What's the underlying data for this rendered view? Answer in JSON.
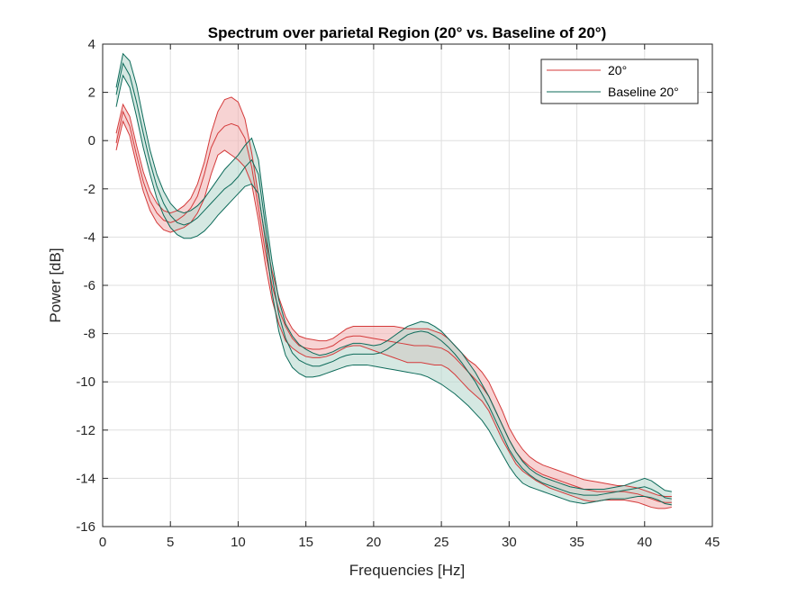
{
  "chart_data": {
    "type": "area",
    "title": "Spectrum over parietal Region (20° vs. Baseline of 20°)",
    "xlabel": "Frequencies [Hz]",
    "ylabel": "Power [dB]",
    "xlim": [
      0,
      45
    ],
    "ylim": [
      -16,
      4
    ],
    "xticks": [
      0,
      5,
      10,
      15,
      20,
      25,
      30,
      35,
      40,
      45
    ],
    "yticks": [
      4,
      2,
      0,
      -2,
      -4,
      -6,
      -8,
      -10,
      -12,
      -14,
      -16
    ],
    "grid": true,
    "legend_position": "top-right",
    "series": [
      {
        "name": "20°",
        "color": "#d43a3a",
        "fill": "#f2b6b6",
        "x": [
          1,
          1.5,
          2,
          2.5,
          3,
          3.5,
          4,
          4.5,
          5,
          5.5,
          6,
          6.5,
          7,
          7.5,
          8,
          8.5,
          9,
          9.5,
          10,
          10.5,
          11,
          11.5,
          12,
          12.5,
          13,
          13.5,
          14,
          14.5,
          15,
          15.5,
          16,
          16.5,
          17,
          17.5,
          18,
          18.5,
          19,
          19.5,
          20,
          20.5,
          21,
          21.5,
          22,
          22.5,
          23,
          23.5,
          24,
          24.5,
          25,
          25.5,
          26,
          26.5,
          27,
          27.5,
          28,
          28.5,
          29,
          29.5,
          30,
          30.5,
          31,
          31.5,
          32,
          32.5,
          33,
          33.5,
          34,
          34.5,
          35,
          35.5,
          36,
          36.5,
          37,
          37.5,
          38,
          38.5,
          39,
          39.5,
          40,
          40.5,
          41,
          41.5,
          42
        ],
        "upper": [
          0.3,
          1.5,
          1.0,
          -0.2,
          -1.3,
          -2.1,
          -2.6,
          -2.9,
          -3.0,
          -2.9,
          -2.7,
          -2.4,
          -1.8,
          -0.9,
          0.3,
          1.2,
          1.7,
          1.8,
          1.6,
          0.9,
          -0.5,
          -2.3,
          -4.0,
          -5.4,
          -6.5,
          -7.3,
          -7.8,
          -8.1,
          -8.2,
          -8.25,
          -8.3,
          -8.3,
          -8.2,
          -8.0,
          -7.8,
          -7.7,
          -7.7,
          -7.7,
          -7.7,
          -7.7,
          -7.7,
          -7.7,
          -7.75,
          -7.8,
          -7.8,
          -7.8,
          -7.8,
          -7.9,
          -8.0,
          -8.2,
          -8.5,
          -8.8,
          -9.1,
          -9.3,
          -9.6,
          -10.0,
          -10.6,
          -11.2,
          -11.9,
          -12.4,
          -12.8,
          -13.1,
          -13.3,
          -13.45,
          -13.55,
          -13.65,
          -13.75,
          -13.85,
          -13.95,
          -14.05,
          -14.1,
          -14.15,
          -14.2,
          -14.25,
          -14.3,
          -14.3,
          -14.35,
          -14.4,
          -14.5,
          -14.6,
          -14.7,
          -14.75,
          -14.75
        ],
        "mean": [
          -0.1,
          1.2,
          0.6,
          -0.6,
          -1.7,
          -2.5,
          -3.0,
          -3.3,
          -3.4,
          -3.3,
          -3.1,
          -2.8,
          -2.3,
          -1.4,
          -0.3,
          0.3,
          0.6,
          0.7,
          0.6,
          0.1,
          -1.1,
          -2.8,
          -4.6,
          -6.0,
          -7.0,
          -7.7,
          -8.2,
          -8.5,
          -8.6,
          -8.65,
          -8.65,
          -8.6,
          -8.5,
          -8.3,
          -8.15,
          -8.1,
          -8.1,
          -8.15,
          -8.2,
          -8.25,
          -8.3,
          -8.35,
          -8.4,
          -8.45,
          -8.5,
          -8.5,
          -8.5,
          -8.55,
          -8.6,
          -8.75,
          -9.0,
          -9.3,
          -9.6,
          -9.9,
          -10.2,
          -10.6,
          -11.2,
          -11.8,
          -12.4,
          -12.9,
          -13.25,
          -13.5,
          -13.7,
          -13.85,
          -13.95,
          -14.05,
          -14.15,
          -14.25,
          -14.35,
          -14.45,
          -14.5,
          -14.55,
          -14.55,
          -14.55,
          -14.55,
          -14.55,
          -14.6,
          -14.65,
          -14.75,
          -14.85,
          -14.95,
          -15.0,
          -15.0
        ],
        "lower": [
          -0.4,
          0.8,
          0.2,
          -1.0,
          -2.1,
          -2.9,
          -3.4,
          -3.7,
          -3.8,
          -3.7,
          -3.6,
          -3.4,
          -3.0,
          -2.4,
          -1.4,
          -0.6,
          -0.4,
          -0.6,
          -0.8,
          -1.1,
          -1.8,
          -3.3,
          -5.1,
          -6.6,
          -7.6,
          -8.3,
          -8.6,
          -8.8,
          -8.95,
          -9.0,
          -9.0,
          -8.95,
          -8.85,
          -8.7,
          -8.55,
          -8.5,
          -8.5,
          -8.6,
          -8.7,
          -8.8,
          -8.9,
          -9.0,
          -9.1,
          -9.2,
          -9.2,
          -9.2,
          -9.25,
          -9.3,
          -9.3,
          -9.45,
          -9.7,
          -10.0,
          -10.3,
          -10.55,
          -10.8,
          -11.2,
          -11.8,
          -12.4,
          -12.9,
          -13.4,
          -13.7,
          -13.9,
          -14.1,
          -14.25,
          -14.4,
          -14.5,
          -14.6,
          -14.7,
          -14.8,
          -14.9,
          -14.95,
          -14.95,
          -14.9,
          -14.9,
          -14.9,
          -14.9,
          -14.95,
          -15.0,
          -15.1,
          -15.2,
          -15.25,
          -15.25,
          -15.2
        ]
      },
      {
        "name": "Baseline 20°",
        "color": "#0d6b5a",
        "fill": "#b9d9cf",
        "x": [
          1,
          1.5,
          2,
          2.5,
          3,
          3.5,
          4,
          4.5,
          5,
          5.5,
          6,
          6.5,
          7,
          7.5,
          8,
          8.5,
          9,
          9.5,
          10,
          10.5,
          11,
          11.5,
          12,
          12.5,
          13,
          13.5,
          14,
          14.5,
          15,
          15.5,
          16,
          16.5,
          17,
          17.5,
          18,
          18.5,
          19,
          19.5,
          20,
          20.5,
          21,
          21.5,
          22,
          22.5,
          23,
          23.5,
          24,
          24.5,
          25,
          25.5,
          26,
          26.5,
          27,
          27.5,
          28,
          28.5,
          29,
          29.5,
          30,
          30.5,
          31,
          31.5,
          32,
          32.5,
          33,
          33.5,
          34,
          34.5,
          35,
          35.5,
          36,
          36.5,
          37,
          37.5,
          38,
          38.5,
          39,
          39.5,
          40,
          40.5,
          41,
          41.5,
          42
        ],
        "upper": [
          2.2,
          3.6,
          3.3,
          2.3,
          0.9,
          -0.4,
          -1.4,
          -2.1,
          -2.6,
          -2.9,
          -3.0,
          -2.9,
          -2.7,
          -2.4,
          -2.0,
          -1.6,
          -1.2,
          -0.9,
          -0.6,
          -0.2,
          0.1,
          -0.8,
          -3.0,
          -5.0,
          -6.6,
          -7.6,
          -8.1,
          -8.45,
          -8.65,
          -8.8,
          -8.9,
          -8.85,
          -8.75,
          -8.6,
          -8.5,
          -8.4,
          -8.4,
          -8.45,
          -8.5,
          -8.45,
          -8.3,
          -8.1,
          -7.9,
          -7.7,
          -7.6,
          -7.5,
          -7.55,
          -7.7,
          -7.9,
          -8.2,
          -8.5,
          -8.8,
          -9.2,
          -9.6,
          -10.1,
          -10.6,
          -11.2,
          -11.8,
          -12.4,
          -12.9,
          -13.3,
          -13.6,
          -13.8,
          -13.95,
          -14.05,
          -14.15,
          -14.25,
          -14.35,
          -14.4,
          -14.45,
          -14.45,
          -14.45,
          -14.45,
          -14.4,
          -14.35,
          -14.3,
          -14.2,
          -14.1,
          -14.0,
          -14.1,
          -14.3,
          -14.5,
          -14.55
        ],
        "mean": [
          1.9,
          3.2,
          2.7,
          1.6,
          0.3,
          -0.9,
          -1.9,
          -2.6,
          -3.1,
          -3.4,
          -3.5,
          -3.4,
          -3.2,
          -2.9,
          -2.6,
          -2.3,
          -2.0,
          -1.8,
          -1.5,
          -1.1,
          -0.8,
          -1.4,
          -3.5,
          -5.6,
          -7.2,
          -8.2,
          -8.8,
          -9.1,
          -9.25,
          -9.35,
          -9.35,
          -9.25,
          -9.15,
          -9.0,
          -8.9,
          -8.85,
          -8.85,
          -8.85,
          -8.85,
          -8.8,
          -8.65,
          -8.45,
          -8.25,
          -8.05,
          -7.95,
          -7.9,
          -7.95,
          -8.1,
          -8.3,
          -8.55,
          -8.85,
          -9.2,
          -9.6,
          -10.0,
          -10.5,
          -11.0,
          -11.6,
          -12.2,
          -12.8,
          -13.25,
          -13.6,
          -13.85,
          -14.05,
          -14.2,
          -14.3,
          -14.4,
          -14.5,
          -14.6,
          -14.65,
          -14.7,
          -14.7,
          -14.7,
          -14.65,
          -14.6,
          -14.55,
          -14.5,
          -14.45,
          -14.4,
          -14.35,
          -14.45,
          -14.6,
          -14.8,
          -14.85
        ],
        "lower": [
          1.4,
          2.7,
          2.2,
          1.0,
          -0.3,
          -1.4,
          -2.4,
          -3.1,
          -3.6,
          -3.9,
          -4.05,
          -4.05,
          -3.95,
          -3.75,
          -3.45,
          -3.1,
          -2.8,
          -2.5,
          -2.2,
          -1.9,
          -1.8,
          -2.2,
          -4.1,
          -6.3,
          -7.9,
          -8.9,
          -9.4,
          -9.65,
          -9.8,
          -9.8,
          -9.75,
          -9.65,
          -9.55,
          -9.45,
          -9.35,
          -9.3,
          -9.3,
          -9.3,
          -9.35,
          -9.4,
          -9.45,
          -9.5,
          -9.55,
          -9.6,
          -9.65,
          -9.7,
          -9.8,
          -9.95,
          -10.1,
          -10.3,
          -10.5,
          -10.75,
          -11.0,
          -11.3,
          -11.6,
          -12.0,
          -12.5,
          -13.0,
          -13.5,
          -13.9,
          -14.2,
          -14.35,
          -14.45,
          -14.55,
          -14.65,
          -14.75,
          -14.85,
          -14.95,
          -15.0,
          -15.05,
          -15.0,
          -14.95,
          -14.9,
          -14.85,
          -14.85,
          -14.85,
          -14.8,
          -14.75,
          -14.75,
          -14.8,
          -14.9,
          -15.05,
          -15.1
        ]
      }
    ]
  }
}
